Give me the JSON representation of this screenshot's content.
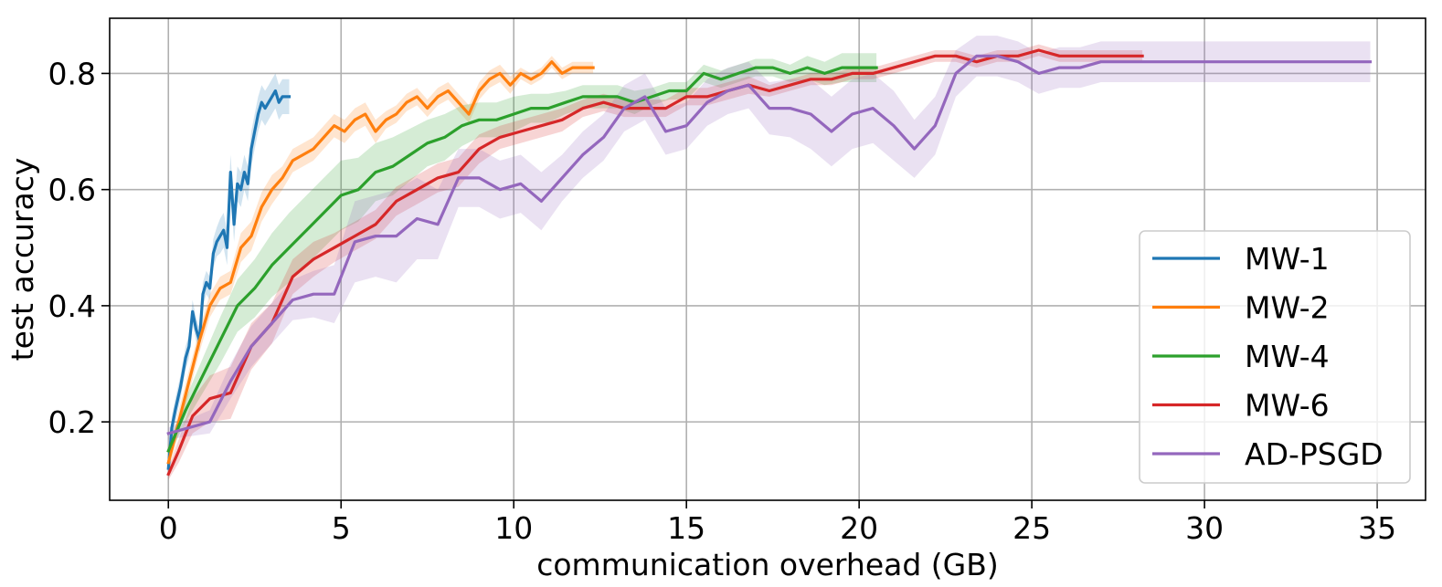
{
  "chart_data": {
    "type": "line",
    "title": "",
    "xlabel": "communication overhead (GB)",
    "ylabel": "test accuracy",
    "xlim": [
      -1.7,
      36.4
    ],
    "ylim": [
      0.065,
      0.895
    ],
    "xticks": [
      0,
      5,
      10,
      15,
      20,
      25,
      30,
      35
    ],
    "xtick_labels": [
      "0",
      "5",
      "10",
      "15",
      "20",
      "25",
      "30",
      "35"
    ],
    "yticks": [
      0.2,
      0.4,
      0.6,
      0.8
    ],
    "ytick_labels": [
      "0.2",
      "0.4",
      "0.6",
      "0.8"
    ],
    "grid": true,
    "legend_position": "lower-right",
    "series": [
      {
        "name": "MW-1",
        "color": "#1f77b4",
        "x": [
          0.0,
          0.1,
          0.2,
          0.35,
          0.5,
          0.6,
          0.7,
          0.8,
          0.9,
          1.0,
          1.1,
          1.2,
          1.3,
          1.4,
          1.5,
          1.6,
          1.7,
          1.8,
          1.9,
          2.0,
          2.1,
          2.2,
          2.3,
          2.4,
          2.5,
          2.6,
          2.7,
          2.8,
          2.9,
          3.0,
          3.1,
          3.2,
          3.3,
          3.4,
          3.5
        ],
        "y": [
          0.12,
          0.19,
          0.22,
          0.26,
          0.31,
          0.33,
          0.39,
          0.36,
          0.34,
          0.42,
          0.44,
          0.43,
          0.49,
          0.51,
          0.52,
          0.53,
          0.5,
          0.63,
          0.54,
          0.61,
          0.6,
          0.63,
          0.61,
          0.67,
          0.7,
          0.73,
          0.75,
          0.74,
          0.75,
          0.76,
          0.77,
          0.75,
          0.76,
          0.76,
          0.76
        ],
        "band": [
          0.015,
          0.02,
          0.02,
          0.02,
          0.02,
          0.02,
          0.02,
          0.02,
          0.02,
          0.02,
          0.02,
          0.02,
          0.025,
          0.025,
          0.03,
          0.03,
          0.03,
          0.03,
          0.03,
          0.03,
          0.03,
          0.03,
          0.03,
          0.03,
          0.03,
          0.03,
          0.03,
          0.03,
          0.03,
          0.03,
          0.03,
          0.03,
          0.03,
          0.03,
          0.03
        ]
      },
      {
        "name": "MW-2",
        "color": "#ff7f0e",
        "x": [
          0.0,
          0.3,
          0.6,
          0.9,
          1.2,
          1.5,
          1.8,
          2.1,
          2.4,
          2.7,
          3.0,
          3.3,
          3.6,
          3.9,
          4.2,
          4.5,
          4.8,
          5.1,
          5.4,
          5.7,
          6.0,
          6.3,
          6.6,
          6.9,
          7.2,
          7.5,
          7.8,
          8.1,
          8.4,
          8.7,
          9.0,
          9.3,
          9.6,
          9.9,
          10.2,
          10.5,
          10.8,
          11.1,
          11.4,
          11.7,
          12.0,
          12.3
        ],
        "y": [
          0.13,
          0.2,
          0.27,
          0.34,
          0.4,
          0.43,
          0.44,
          0.5,
          0.52,
          0.57,
          0.6,
          0.62,
          0.65,
          0.66,
          0.67,
          0.69,
          0.71,
          0.7,
          0.72,
          0.73,
          0.7,
          0.72,
          0.73,
          0.75,
          0.76,
          0.74,
          0.76,
          0.77,
          0.75,
          0.73,
          0.77,
          0.79,
          0.8,
          0.78,
          0.8,
          0.79,
          0.8,
          0.82,
          0.8,
          0.81,
          0.81,
          0.81
        ],
        "band": [
          0.015,
          0.02,
          0.02,
          0.02,
          0.02,
          0.02,
          0.02,
          0.025,
          0.025,
          0.025,
          0.025,
          0.02,
          0.02,
          0.02,
          0.02,
          0.02,
          0.02,
          0.02,
          0.02,
          0.02,
          0.02,
          0.015,
          0.015,
          0.015,
          0.015,
          0.015,
          0.015,
          0.015,
          0.015,
          0.015,
          0.015,
          0.015,
          0.015,
          0.015,
          0.01,
          0.01,
          0.01,
          0.01,
          0.01,
          0.01,
          0.01,
          0.01
        ]
      },
      {
        "name": "MW-4",
        "color": "#2ca02c",
        "x": [
          0.0,
          0.5,
          1.0,
          1.5,
          2.0,
          2.5,
          3.0,
          3.5,
          4.0,
          4.5,
          5.0,
          5.5,
          6.0,
          6.5,
          7.0,
          7.5,
          8.0,
          8.5,
          9.0,
          9.5,
          10.0,
          10.5,
          11.0,
          11.5,
          12.0,
          12.5,
          13.0,
          13.5,
          14.0,
          14.5,
          15.0,
          15.5,
          16.0,
          16.5,
          17.0,
          17.5,
          18.0,
          18.5,
          19.0,
          19.5,
          20.0,
          20.5
        ],
        "y": [
          0.15,
          0.22,
          0.28,
          0.34,
          0.4,
          0.43,
          0.47,
          0.5,
          0.53,
          0.56,
          0.59,
          0.6,
          0.63,
          0.64,
          0.66,
          0.68,
          0.69,
          0.71,
          0.72,
          0.72,
          0.73,
          0.74,
          0.74,
          0.75,
          0.76,
          0.76,
          0.76,
          0.75,
          0.76,
          0.77,
          0.77,
          0.8,
          0.79,
          0.8,
          0.81,
          0.81,
          0.8,
          0.81,
          0.8,
          0.81,
          0.81,
          0.81
        ],
        "band": [
          0.01,
          0.02,
          0.03,
          0.04,
          0.045,
          0.05,
          0.055,
          0.06,
          0.06,
          0.06,
          0.06,
          0.055,
          0.05,
          0.05,
          0.045,
          0.04,
          0.04,
          0.035,
          0.03,
          0.03,
          0.03,
          0.025,
          0.025,
          0.02,
          0.02,
          0.02,
          0.02,
          0.02,
          0.015,
          0.015,
          0.015,
          0.015,
          0.015,
          0.015,
          0.015,
          0.015,
          0.015,
          0.02,
          0.02,
          0.025,
          0.025,
          0.025
        ]
      },
      {
        "name": "MW-6",
        "color": "#d62728",
        "x": [
          0.0,
          0.3,
          0.7,
          1.2,
          1.8,
          2.4,
          3.0,
          3.6,
          4.2,
          4.8,
          5.4,
          6.0,
          6.6,
          7.2,
          7.8,
          8.4,
          9.0,
          9.6,
          10.2,
          10.8,
          11.4,
          12.0,
          12.6,
          13.2,
          13.8,
          14.4,
          15.0,
          15.6,
          16.2,
          16.8,
          17.4,
          18.0,
          18.6,
          19.2,
          19.8,
          20.4,
          21.0,
          21.6,
          22.2,
          22.8,
          23.4,
          24.0,
          24.6,
          25.2,
          25.8,
          26.4,
          27.0,
          27.6,
          28.2
        ],
        "y": [
          0.11,
          0.15,
          0.21,
          0.24,
          0.25,
          0.33,
          0.37,
          0.45,
          0.48,
          0.5,
          0.52,
          0.54,
          0.58,
          0.6,
          0.62,
          0.63,
          0.67,
          0.69,
          0.7,
          0.71,
          0.72,
          0.74,
          0.75,
          0.74,
          0.74,
          0.74,
          0.76,
          0.76,
          0.77,
          0.78,
          0.77,
          0.78,
          0.79,
          0.79,
          0.8,
          0.8,
          0.81,
          0.82,
          0.83,
          0.83,
          0.82,
          0.83,
          0.83,
          0.84,
          0.83,
          0.83,
          0.83,
          0.83,
          0.83
        ],
        "band": [
          0.01,
          0.02,
          0.03,
          0.04,
          0.045,
          0.04,
          0.035,
          0.03,
          0.03,
          0.025,
          0.025,
          0.025,
          0.025,
          0.025,
          0.025,
          0.025,
          0.025,
          0.02,
          0.02,
          0.02,
          0.02,
          0.015,
          0.015,
          0.015,
          0.015,
          0.015,
          0.015,
          0.015,
          0.015,
          0.015,
          0.01,
          0.01,
          0.01,
          0.01,
          0.01,
          0.01,
          0.01,
          0.01,
          0.01,
          0.01,
          0.01,
          0.01,
          0.01,
          0.01,
          0.01,
          0.01,
          0.01,
          0.01,
          0.01
        ]
      },
      {
        "name": "AD-PSGD",
        "color": "#9467bd",
        "x": [
          0.0,
          0.6,
          1.2,
          1.8,
          2.4,
          3.0,
          3.6,
          4.2,
          4.8,
          5.4,
          6.0,
          6.6,
          7.2,
          7.8,
          8.4,
          9.0,
          9.6,
          10.2,
          10.8,
          11.4,
          12.0,
          12.6,
          13.2,
          13.8,
          14.4,
          15.0,
          15.6,
          16.2,
          16.8,
          17.4,
          18.0,
          18.6,
          19.2,
          19.8,
          20.4,
          21.0,
          21.6,
          22.2,
          22.8,
          23.4,
          24.0,
          24.6,
          25.2,
          25.8,
          26.4,
          27.0,
          27.6,
          28.2,
          28.8,
          29.4,
          30.0,
          30.6,
          31.2,
          31.8,
          32.4,
          33.0,
          33.6,
          34.2,
          34.8
        ],
        "y": [
          0.18,
          0.19,
          0.2,
          0.27,
          0.33,
          0.37,
          0.41,
          0.42,
          0.42,
          0.51,
          0.52,
          0.52,
          0.55,
          0.54,
          0.62,
          0.62,
          0.6,
          0.61,
          0.58,
          0.62,
          0.66,
          0.69,
          0.74,
          0.76,
          0.7,
          0.71,
          0.75,
          0.77,
          0.78,
          0.74,
          0.74,
          0.73,
          0.7,
          0.73,
          0.74,
          0.71,
          0.67,
          0.71,
          0.8,
          0.83,
          0.83,
          0.82,
          0.8,
          0.81,
          0.81,
          0.82,
          0.82,
          0.82,
          0.82,
          0.82,
          0.82,
          0.82,
          0.82,
          0.82,
          0.82,
          0.82,
          0.82,
          0.82,
          0.82
        ],
        "band": [
          0.01,
          0.015,
          0.02,
          0.03,
          0.035,
          0.035,
          0.035,
          0.04,
          0.05,
          0.07,
          0.07,
          0.08,
          0.07,
          0.06,
          0.05,
          0.05,
          0.05,
          0.05,
          0.05,
          0.04,
          0.04,
          0.04,
          0.04,
          0.04,
          0.04,
          0.04,
          0.04,
          0.04,
          0.04,
          0.045,
          0.05,
          0.06,
          0.06,
          0.06,
          0.06,
          0.06,
          0.05,
          0.05,
          0.04,
          0.035,
          0.035,
          0.035,
          0.035,
          0.035,
          0.035,
          0.035,
          0.035,
          0.035,
          0.035,
          0.035,
          0.035,
          0.035,
          0.035,
          0.035,
          0.035,
          0.035,
          0.035,
          0.035,
          0.035
        ]
      }
    ]
  }
}
